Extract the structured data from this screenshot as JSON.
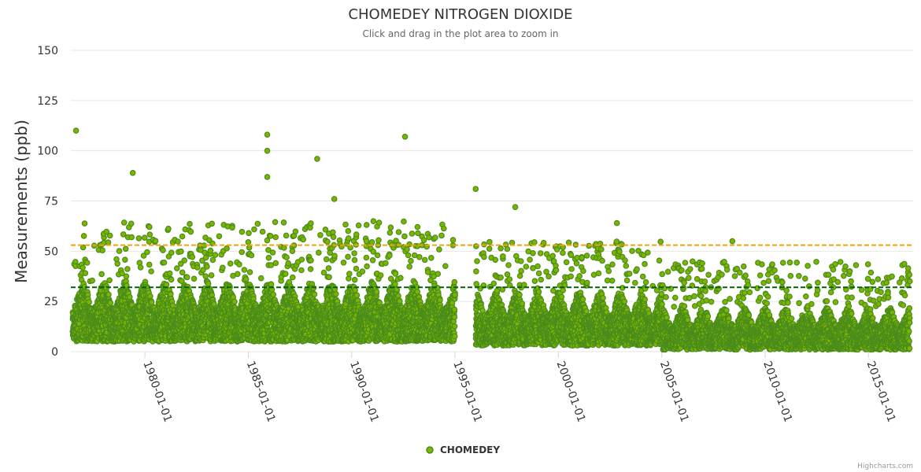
{
  "chart_data": {
    "type": "scatter",
    "title": "CHOMEDEY NITROGEN DIOXIDE",
    "subtitle": "Click and drag in the plot area to zoom in",
    "ylabel": "Measurements (ppb)",
    "xlabel": "",
    "ylim": [
      0,
      150
    ],
    "yticks": [
      "0",
      "25",
      "50",
      "75",
      "100",
      "125",
      "150"
    ],
    "xlim": [
      "1976-06-01",
      "2017-03-01"
    ],
    "xticks": [
      "1980-01-01",
      "1985-01-01",
      "1990-01-01",
      "1995-01-01",
      "2000-01-01",
      "2005-01-01",
      "2010-01-01",
      "2015-01-01"
    ],
    "reference_lines": [
      {
        "value": 53,
        "color": "#f0a30a",
        "style": "dashed"
      },
      {
        "value": 32,
        "color": "#006400",
        "style": "dashed"
      }
    ],
    "series": [
      {
        "name": "CHOMEDEY",
        "color": "#7cb500",
        "stroke": "#4a8c1c",
        "segments": [
          {
            "start": "1976-07-01",
            "end": "1995-01-01",
            "typical_range": [
              5,
              35
            ],
            "peak_range": [
              35,
              65
            ]
          },
          {
            "start": "1996-01-01",
            "end": "2005-01-01",
            "typical_range": [
              3,
              30
            ],
            "peak_range": [
              30,
              55
            ]
          },
          {
            "start": "2005-01-01",
            "end": "2017-01-01",
            "typical_range": [
              1,
              22
            ],
            "peak_range": [
              22,
              45
            ]
          }
        ],
        "notable_points": [
          {
            "x": "1976-09-01",
            "y": 110
          },
          {
            "x": "1979-06-01",
            "y": 89
          },
          {
            "x": "1985-12-01",
            "y": 108
          },
          {
            "x": "1985-12-01",
            "y": 100
          },
          {
            "x": "1988-05-01",
            "y": 96
          },
          {
            "x": "1992-08-01",
            "y": 107
          },
          {
            "x": "1996-01-01",
            "y": 81
          },
          {
            "x": "1997-12-01",
            "y": 72
          },
          {
            "x": "2002-11-01",
            "y": 64
          },
          {
            "x": "2008-06-01",
            "y": 55
          },
          {
            "x": "1985-12-01",
            "y": 87
          },
          {
            "x": "1989-03-01",
            "y": 76
          }
        ]
      }
    ],
    "legend": {
      "label": "CHOMEDEY",
      "position": "bottom"
    }
  },
  "credits": "Highcharts.com"
}
